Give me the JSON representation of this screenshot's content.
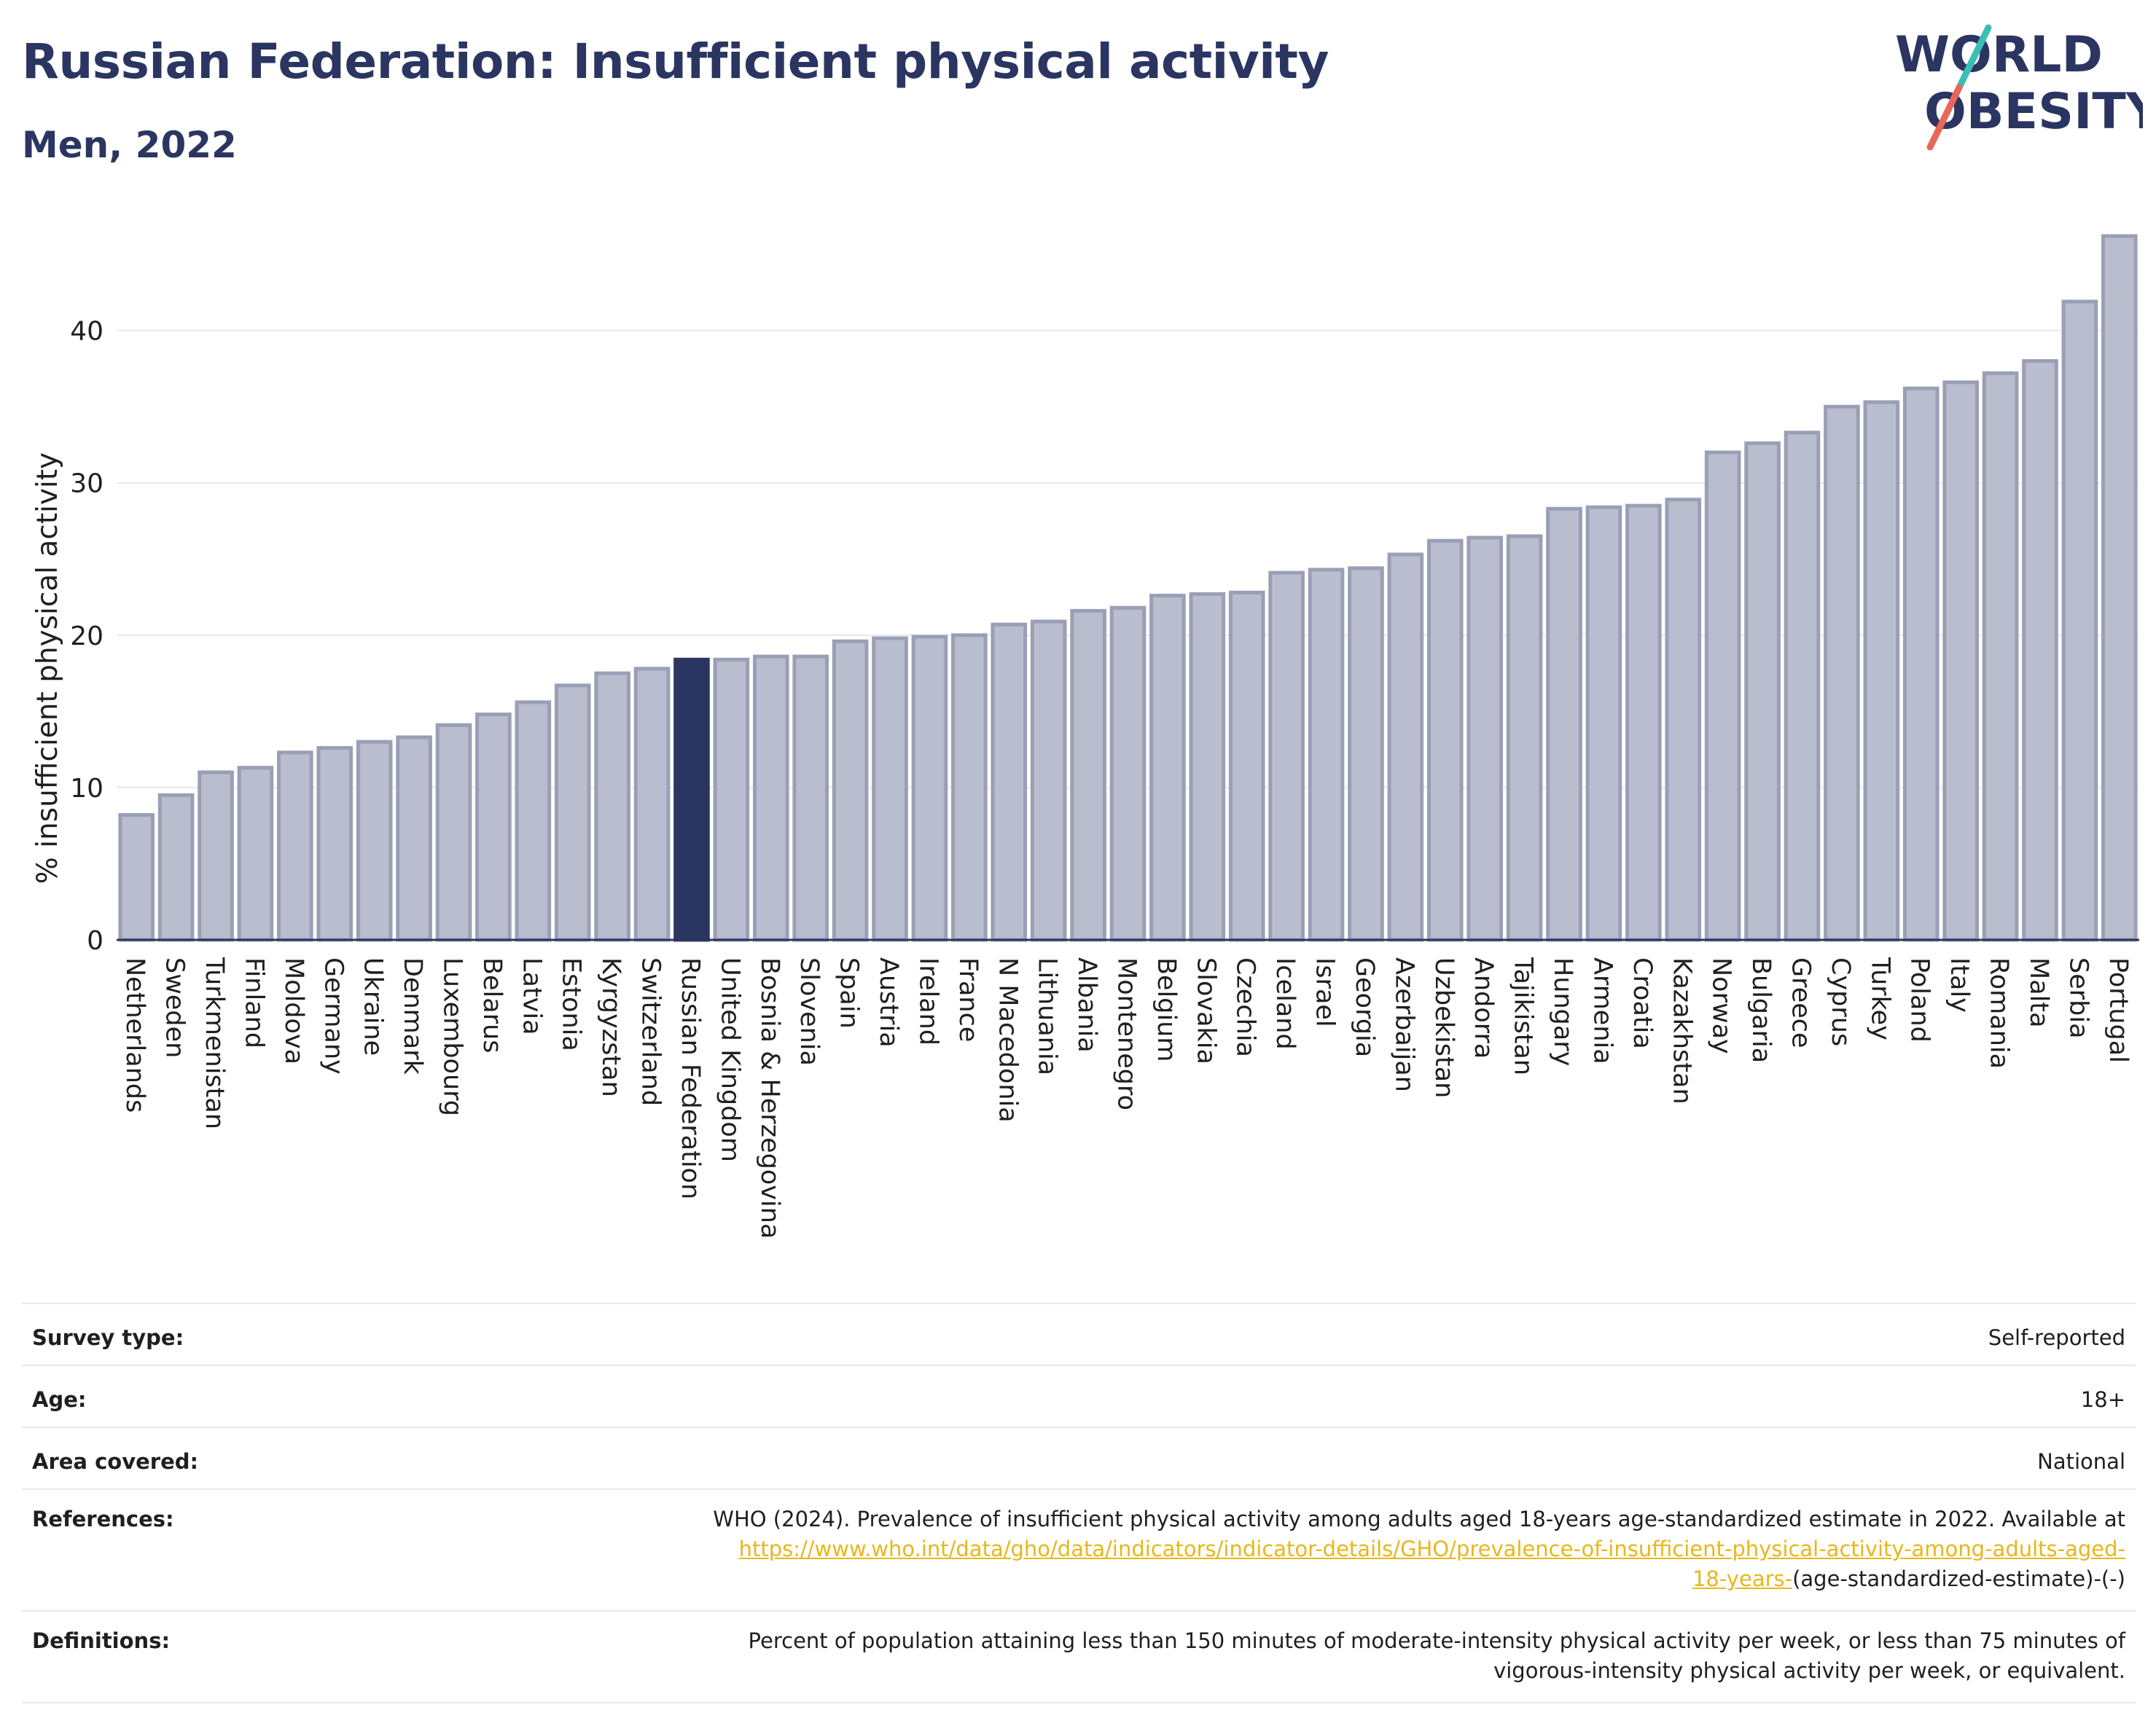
{
  "header": {
    "title": "Russian Federation: Insufficient physical activity",
    "subtitle": "Men, 2022"
  },
  "logo": {
    "line1": "WORLD",
    "line2": "OBESITY",
    "slash_top_color": "#3bbfb5",
    "slash_bottom_color": "#e8675a",
    "text_color": "#2b3561"
  },
  "colors": {
    "bar_fill": "#b9bdcd",
    "bar_stroke": "#9a9fb6",
    "highlight": "#2b3561",
    "grid": "#e7e9ee",
    "axis": "#2b3561"
  },
  "chart_data": {
    "type": "bar",
    "title": "",
    "xlabel": "",
    "ylabel": "% insufficient physical activity",
    "ylim": [
      0,
      46.2
    ],
    "yticks": [
      0,
      10,
      20,
      30,
      40
    ],
    "grid": true,
    "highlight": "Russian Federation",
    "categories": [
      "Netherlands",
      "Sweden",
      "Turkmenistan",
      "Finland",
      "Moldova",
      "Germany",
      "Ukraine",
      "Denmark",
      "Luxembourg",
      "Belarus",
      "Latvia",
      "Estonia",
      "Kyrgyzstan",
      "Switzerland",
      "Russian Federation",
      "United Kingdom",
      "Bosnia & Herzegovina",
      "Slovenia",
      "Spain",
      "Austria",
      "Ireland",
      "France",
      "N Macedonia",
      "Lithuania",
      "Albania",
      "Montenegro",
      "Belgium",
      "Slovakia",
      "Czechia",
      "Iceland",
      "Israel",
      "Georgia",
      "Azerbaijan",
      "Uzbekistan",
      "Andorra",
      "Tajikistan",
      "Hungary",
      "Armenia",
      "Croatia",
      "Kazakhstan",
      "Norway",
      "Bulgaria",
      "Greece",
      "Cyprus",
      "Turkey",
      "Poland",
      "Italy",
      "Romania",
      "Malta",
      "Serbia",
      "Portugal"
    ],
    "values": [
      8.2,
      9.5,
      11.0,
      11.3,
      12.3,
      12.6,
      13.0,
      13.3,
      14.1,
      14.8,
      15.6,
      16.7,
      17.5,
      17.8,
      18.4,
      18.4,
      18.6,
      18.6,
      19.6,
      19.8,
      19.9,
      20.0,
      20.7,
      20.9,
      21.6,
      21.8,
      22.6,
      22.7,
      22.8,
      24.1,
      24.3,
      24.4,
      25.3,
      26.2,
      26.4,
      26.5,
      28.3,
      28.4,
      28.5,
      28.9,
      32.0,
      32.6,
      33.3,
      35.0,
      35.3,
      36.2,
      36.6,
      37.2,
      38.0,
      41.9,
      46.2
    ]
  },
  "info": {
    "survey_type_label": "Survey type:",
    "survey_type_value": "Self-reported",
    "age_label": "Age:",
    "age_value": "18+",
    "area_label": "Area covered:",
    "area_value": "National",
    "references_label": "References:",
    "references_text": "WHO (2024). Prevalence of insufficient physical activity among adults aged 18-years age-standardized estimate in 2022. Available at",
    "references_link_line1": "https://www.who.int/data/gho/data/indicators/indicator-details/GHO/prevalence-of-insufficient-physical-activity-among-adults-aged-",
    "references_link_line2": "18-years-",
    "references_suffix": "(age-standardized-estimate)-(-)",
    "definitions_label": "Definitions:",
    "definitions_line1": "Percent of population attaining less than 150 minutes of moderate-intensity physical activity per week, or less than 75 minutes of",
    "definitions_line2": "vigorous-intensity physical activity per week, or equivalent."
  }
}
